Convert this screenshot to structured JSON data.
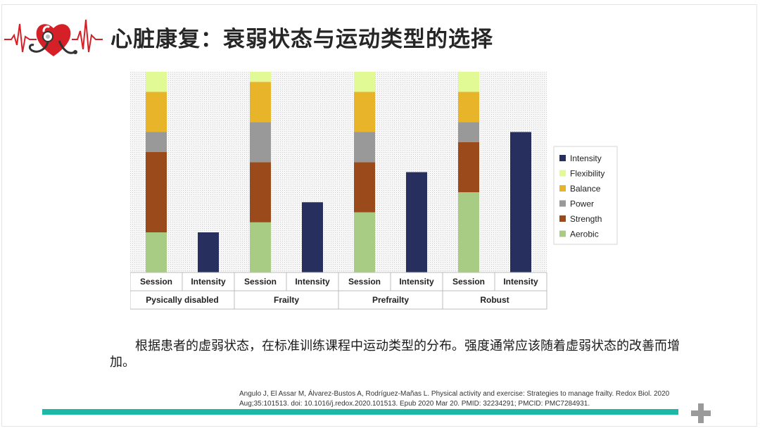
{
  "slide": {
    "title": "心脏康复：衰弱状态与运动类型的选择",
    "caption": "根据患者的虚弱状态，在标准训练课程中运动类型的分布。强度通常应该随着虚弱状态的改善而增加。",
    "reference": "Angulo J, El Assar M, Álvarez-Bustos A, Rodríguez-Mañas L. Physical activity and exercise: Strategies to manage frailty. Redox Biol. 2020 Aug;35:101513. doi: 10.1016/j.redox.2020.101513. Epub 2020 Mar 20. PMID: 32234291; PMCID: PMC7284931.",
    "accent_color": "#1cb9a6"
  },
  "chart_data": {
    "type": "bar",
    "groups": [
      "Pysically disabled",
      "Frailty",
      "Prefrailty",
      "Robust"
    ],
    "columns": [
      "Session",
      "Intensity"
    ],
    "stack_order": [
      "Aerobic",
      "Strength",
      "Power",
      "Balance",
      "Flexibility"
    ],
    "series": [
      {
        "name": "Aerobic",
        "color": "#a8cc84",
        "values": [
          4,
          5,
          6,
          8
        ]
      },
      {
        "name": "Strength",
        "color": "#9b4a1c",
        "values": [
          8,
          6,
          5,
          5
        ]
      },
      {
        "name": "Power",
        "color": "#999999",
        "values": [
          2,
          4,
          3,
          2
        ]
      },
      {
        "name": "Balance",
        "color": "#e8b52a",
        "values": [
          4,
          4,
          4,
          3
        ]
      },
      {
        "name": "Flexibility",
        "color": "#e2fa96",
        "values": [
          2,
          2,
          2,
          2
        ]
      }
    ],
    "intensity": {
      "name": "Intensity",
      "color": "#262f5e",
      "values": [
        4,
        7,
        10,
        14
      ]
    },
    "legend": [
      "Intensity",
      "Flexibility",
      "Balance",
      "Power",
      "Strength",
      "Aerobic"
    ],
    "ylim": [
      0,
      20
    ],
    "legend_position": "right",
    "grid": false
  }
}
